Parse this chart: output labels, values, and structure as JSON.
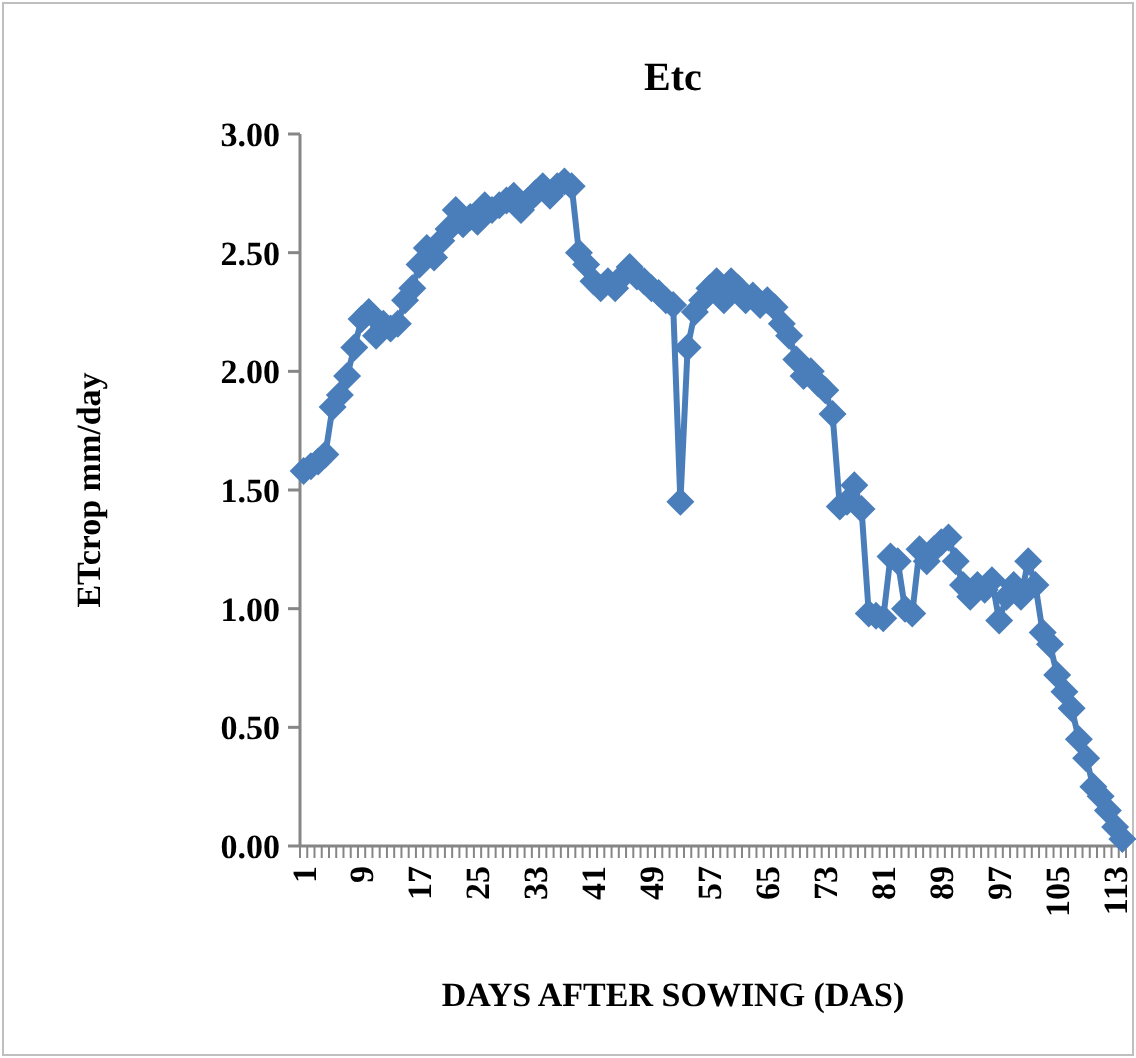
{
  "chart_data": {
    "type": "line",
    "title": "Etc",
    "xlabel": "DAYS AFTER SOWING (DAS)",
    "ylabel": "ETcrop mm/day",
    "categories": [
      "1",
      null,
      null,
      null,
      null,
      null,
      null,
      null,
      "9",
      null,
      null,
      null,
      null,
      null,
      null,
      null,
      "17",
      null,
      null,
      null,
      null,
      null,
      null,
      null,
      "25",
      null,
      null,
      null,
      null,
      null,
      null,
      null,
      "33",
      null,
      null,
      null,
      null,
      null,
      null,
      null,
      "41",
      null,
      null,
      null,
      null,
      null,
      null,
      null,
      "49",
      null,
      null,
      null,
      null,
      null,
      null,
      null,
      "57",
      null,
      null,
      null,
      null,
      null,
      null,
      null,
      "65",
      null,
      null,
      null,
      null,
      null,
      null,
      null,
      "73",
      null,
      null,
      null,
      null,
      null,
      null,
      null,
      "81",
      null,
      null,
      null,
      null,
      null,
      null,
      null,
      "89",
      null,
      null,
      null,
      null,
      null,
      null,
      null,
      "97",
      null,
      null,
      null,
      null,
      null,
      null,
      null,
      "105",
      null,
      null,
      null,
      null,
      null,
      null,
      null,
      "113",
      null
    ],
    "series": [
      {
        "color": "#4a7ebb",
        "values": [
          1.58,
          1.6,
          1.62,
          1.65,
          1.85,
          1.9,
          1.98,
          2.1,
          2.22,
          2.25,
          2.15,
          2.2,
          2.18,
          2.2,
          2.3,
          2.35,
          2.45,
          2.52,
          2.48,
          2.55,
          2.6,
          2.68,
          2.62,
          2.65,
          2.63,
          2.7,
          2.68,
          2.7,
          2.72,
          2.74,
          2.68,
          2.72,
          2.75,
          2.78,
          2.74,
          2.78,
          2.8,
          2.78,
          2.5,
          2.45,
          2.38,
          2.35,
          2.38,
          2.35,
          2.4,
          2.44,
          2.4,
          2.38,
          2.35,
          2.33,
          2.3,
          2.28,
          1.45,
          2.1,
          2.25,
          2.3,
          2.35,
          2.38,
          2.3,
          2.38,
          2.35,
          2.3,
          2.32,
          2.28,
          2.3,
          2.27,
          2.2,
          2.15,
          2.05,
          1.98,
          2.0,
          1.95,
          1.92,
          1.82,
          1.43,
          1.45,
          1.52,
          1.42,
          0.98,
          0.97,
          0.96,
          1.22,
          1.2,
          1.0,
          0.98,
          1.25,
          1.2,
          1.25,
          1.28,
          1.3,
          1.2,
          1.1,
          1.05,
          1.1,
          1.08,
          1.12,
          0.95,
          1.05,
          1.1,
          1.05,
          1.2,
          1.1,
          0.9,
          0.85,
          0.72,
          0.65,
          0.58,
          0.45,
          0.37,
          0.25,
          0.21,
          0.15,
          0.08,
          0.03
        ]
      }
    ],
    "ylim": [
      0,
      3
    ],
    "yticks": [
      {
        "value": 0,
        "label": "0.00"
      },
      {
        "value": 0.5,
        "label": "0.50"
      },
      {
        "value": 1,
        "label": "1.00"
      },
      {
        "value": 1.5,
        "label": "1.50"
      },
      {
        "value": 2,
        "label": "2.00"
      },
      {
        "value": 2.5,
        "label": "2.50"
      },
      {
        "value": 3,
        "label": "3.00"
      }
    ],
    "marker": "diamond",
    "line_style": "solid"
  }
}
